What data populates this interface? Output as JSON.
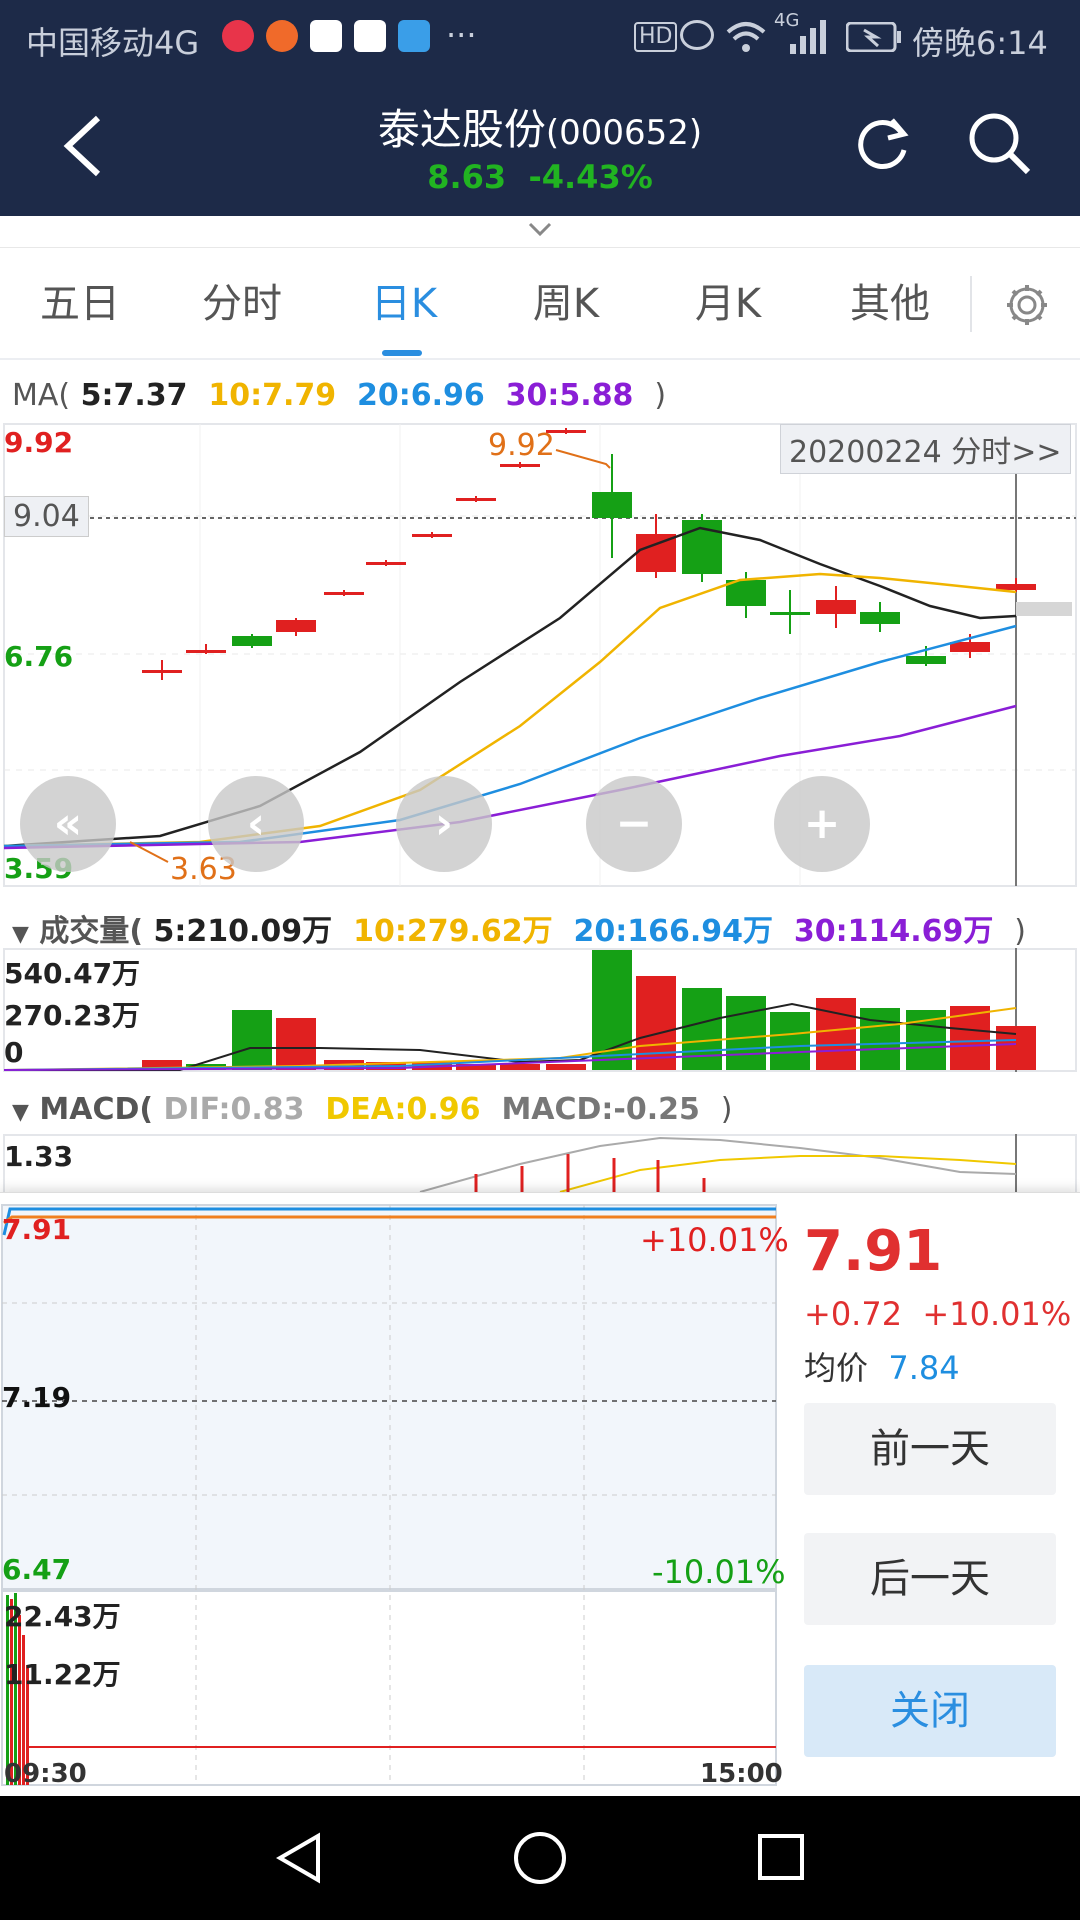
{
  "status_bar": {
    "carrier": "中国移动4G",
    "more": "···",
    "hd": "HD",
    "network": "4G",
    "time": "傍晚6:14"
  },
  "header": {
    "stock_name": "泰达股份",
    "stock_code": "(000652)",
    "price": "8.63",
    "change_pct": "-4.43%"
  },
  "tabs": [
    "五日",
    "分时",
    "日K",
    "周K",
    "月K",
    "其他"
  ],
  "active_tab": 2,
  "ma_legend": {
    "prefix": "MA(",
    "ma5": "5:7.37",
    "ma10": "10:7.79",
    "ma20": "20:6.96",
    "ma30": "30:5.88",
    "suffix": ")"
  },
  "kline": {
    "max_label": "9.92",
    "crosshair_price": "9.04",
    "mid_label": "6.76",
    "min_label": "3.59",
    "high_annot": "9.92",
    "low_annot": "3.63",
    "date_badge": "20200224 分时>>"
  },
  "volume_legend": {
    "prefix": "成交量(",
    "v5": "5:210.09万",
    "v10": "10:279.62万",
    "v20": "20:166.94万",
    "v30": "30:114.69万",
    "suffix": ")"
  },
  "volume": {
    "max_label": "540.47万",
    "mid_label": "270.23万",
    "zero_label": "0"
  },
  "macd_legend": {
    "prefix": "MACD(",
    "dif": "DIF:0.83",
    "dea": "DEA:0.96",
    "macd": "MACD:-0.25",
    "suffix": ")"
  },
  "macd": {
    "max_label": "1.33"
  },
  "intraday": {
    "high_label": "7.91",
    "high_pct": "+10.01%",
    "mid_label": "7.19",
    "low_label": "6.47",
    "low_pct": "-10.01%",
    "vol_max": "22.43万",
    "vol_mid": "11.22万",
    "time_start": "09:30",
    "time_end": "15:00"
  },
  "side_panel": {
    "price": "7.91",
    "change": "+0.72",
    "change_pct": "+10.01%",
    "avg_label": "均价",
    "avg_value": "7.84",
    "prev_day": "前一天",
    "next_day": "后一天",
    "close": "关闭"
  },
  "colors": {
    "up": "#e02020",
    "down": "#15a015",
    "ma5": "#222222",
    "ma10": "#f0b400",
    "ma20": "#1e8ee0",
    "ma30": "#8a1ed6",
    "header_bg": "#1d2a48",
    "accent": "#2a8ee0"
  }
}
